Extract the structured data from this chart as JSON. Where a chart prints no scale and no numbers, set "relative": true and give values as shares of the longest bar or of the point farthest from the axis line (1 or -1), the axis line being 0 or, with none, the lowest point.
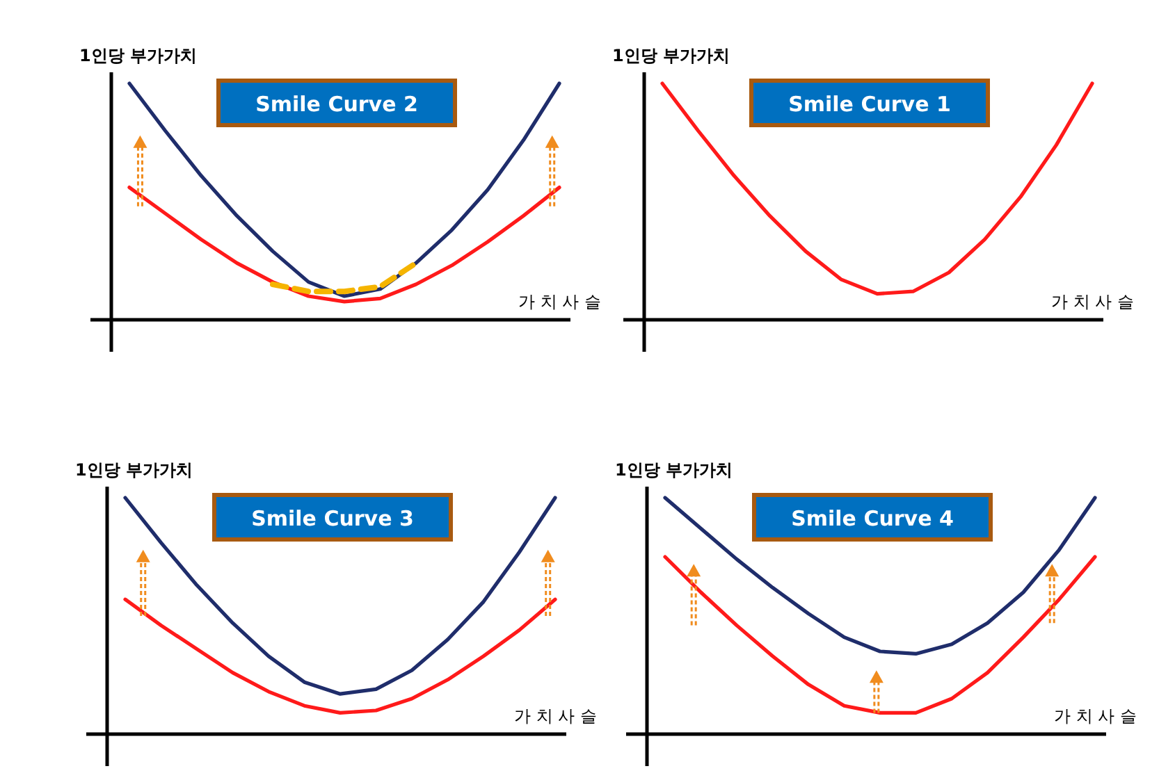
{
  "chart_data": [
    {
      "type": "line",
      "title": "Smile Curve 2",
      "ylabel": "1인당 부가가치",
      "xlabel": "가 치 사 슬",
      "relative": true,
      "categories": [
        null,
        null,
        null,
        null,
        null,
        null,
        null,
        null,
        null,
        null,
        null,
        null,
        null
      ],
      "series": [
        {
          "color": "#1f2d6b",
          "values": [
            1.0,
            0.8,
            0.61,
            0.44,
            0.29,
            0.16,
            0.1,
            0.13,
            0.24,
            0.38,
            0.55,
            0.76,
            1.0
          ]
        },
        {
          "color": "#ff1a1a",
          "values": [
            0.56,
            0.45,
            0.34,
            0.24,
            0.16,
            0.1,
            0.077,
            0.09,
            0.15,
            0.23,
            0.33,
            0.44,
            0.56
          ]
        },
        {
          "color": "#f5b400",
          "line_style": "dashed",
          "values": [
            null,
            null,
            null,
            null,
            0.15,
            0.12,
            0.12,
            0.14,
            0.24,
            null,
            null,
            null,
            null
          ]
        }
      ]
    },
    {
      "type": "line",
      "title": "Smile Curve 1",
      "ylabel": "1인당 부가가치",
      "xlabel": "가 치 사 슬",
      "relative": true,
      "categories": [
        null,
        null,
        null,
        null,
        null,
        null,
        null,
        null,
        null,
        null,
        null,
        null,
        null
      ],
      "series": [
        {
          "color": "#ff1a1a",
          "values": [
            1.0,
            0.8,
            0.61,
            0.44,
            0.29,
            0.17,
            0.11,
            0.12,
            0.2,
            0.34,
            0.52,
            0.74,
            1.0
          ]
        }
      ]
    },
    {
      "type": "line",
      "title": "Smile Curve 3",
      "ylabel": "1인당 부가가치",
      "xlabel": "가 치 사 슬",
      "relative": true,
      "categories": [
        null,
        null,
        null,
        null,
        null,
        null,
        null,
        null,
        null,
        null,
        null,
        null,
        null
      ],
      "series": [
        {
          "color": "#1f2d6b",
          "values": [
            1.0,
            0.81,
            0.63,
            0.47,
            0.33,
            0.22,
            0.17,
            0.19,
            0.27,
            0.4,
            0.56,
            0.77,
            1.0
          ]
        },
        {
          "color": "#ff1a1a",
          "values": [
            0.57,
            0.46,
            0.36,
            0.26,
            0.18,
            0.12,
            0.09,
            0.1,
            0.15,
            0.23,
            0.33,
            0.44,
            0.57
          ]
        }
      ]
    },
    {
      "type": "line",
      "title": "Smile Curve 4",
      "ylabel": "1인당 부가가치",
      "xlabel": "가 치 사 슬",
      "relative": true,
      "categories": [
        null,
        null,
        null,
        null,
        null,
        null,
        null,
        null,
        null,
        null,
        null,
        null,
        null
      ],
      "series": [
        {
          "color": "#1f2d6b",
          "values": [
            1.0,
            0.87,
            0.74,
            0.62,
            0.51,
            0.41,
            0.35,
            0.34,
            0.38,
            0.47,
            0.6,
            0.78,
            1.0
          ]
        },
        {
          "color": "#ff1a1a",
          "values": [
            0.75,
            0.6,
            0.46,
            0.33,
            0.21,
            0.12,
            0.09,
            0.09,
            0.15,
            0.26,
            0.41,
            0.57,
            0.75
          ]
        }
      ]
    }
  ]
}
